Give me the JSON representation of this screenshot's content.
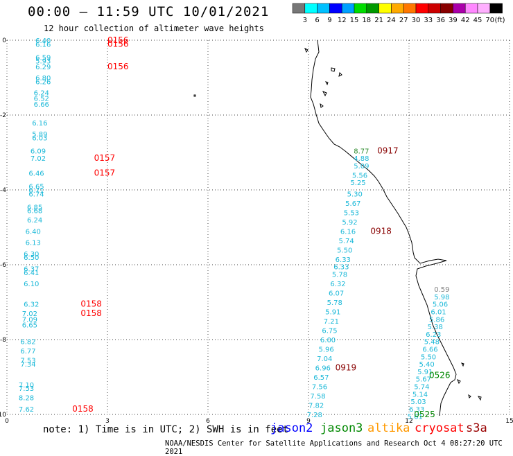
{
  "title": "00:00 – 11:59 UTC 10/01/2021",
  "subtitle": "12 hour collection of altimeter wave heights",
  "color_scale": {
    "colors": [
      "#777777",
      "#00ffff",
      "#00c0ff",
      "#0000ff",
      "#00a0ff",
      "#00dd00",
      "#009900",
      "#ffff00",
      "#ffaa00",
      "#ff7700",
      "#ff0000",
      "#cc0000",
      "#880000",
      "#aa00aa",
      "#ff88ff",
      "#ffb0ff",
      "#000000"
    ],
    "labels": [
      "3",
      "6",
      "9",
      "12",
      "15",
      "18",
      "21",
      "24",
      "27",
      "30",
      "33",
      "36",
      "39",
      "42",
      "45",
      "70"
    ],
    "unit": "(ft)"
  },
  "axes": {
    "x_ticks": [
      "0",
      "3",
      "6",
      "9",
      "12",
      "15"
    ],
    "y_ticks": [
      "0",
      "-2",
      "-4",
      "-6",
      "-8",
      "-10"
    ]
  },
  "note": "note: 1) Time is in UTC; 2) SWH is in feet",
  "satellites": [
    {
      "name": "jason2",
      "color": "#0000ff"
    },
    {
      "name": "jason3",
      "color": "#008800"
    },
    {
      "name": "altika",
      "color": "#ff9900"
    },
    {
      "name": "cryosat",
      "color": "#ff0000"
    },
    {
      "name": "s3a",
      "color": "#990000"
    }
  ],
  "footer": "NOAA/NESDIS Center for Satellite Applications and Research   Oct  4 08:27:20 UTC 2021",
  "track_left": [
    {
      "x": 0.85,
      "y": 0.0,
      "v": "6.40"
    },
    {
      "x": 0.85,
      "y": -0.1,
      "v": "6.16"
    },
    {
      "x": 0.85,
      "y": -0.45,
      "v": "6.59"
    },
    {
      "x": 0.85,
      "y": -0.55,
      "v": "5.93"
    },
    {
      "x": 0.85,
      "y": -0.7,
      "v": "6.29"
    },
    {
      "x": 0.85,
      "y": -1.0,
      "v": "6.80"
    },
    {
      "x": 0.85,
      "y": -1.1,
      "v": "6.26"
    },
    {
      "x": 0.8,
      "y": -1.4,
      "v": "6.24"
    },
    {
      "x": 0.8,
      "y": -1.55,
      "v": "6.52"
    },
    {
      "x": 0.8,
      "y": -1.7,
      "v": "6.66"
    },
    {
      "x": 0.75,
      "y": -2.2,
      "v": "6.16"
    },
    {
      "x": 0.75,
      "y": -2.5,
      "v": "5.89"
    },
    {
      "x": 0.75,
      "y": -2.6,
      "v": "6.03"
    },
    {
      "x": 0.7,
      "y": -2.95,
      "v": "6.09"
    },
    {
      "x": 0.7,
      "y": -3.15,
      "v": "7.02"
    },
    {
      "x": 0.65,
      "y": -3.55,
      "v": "6.46"
    },
    {
      "x": 0.65,
      "y": -3.9,
      "v": "6.65"
    },
    {
      "x": 0.65,
      "y": -4.0,
      "v": "6.71"
    },
    {
      "x": 0.65,
      "y": -4.1,
      "v": "6.74"
    },
    {
      "x": 0.6,
      "y": -4.45,
      "v": "6.85"
    },
    {
      "x": 0.6,
      "y": -4.55,
      "v": "6.68"
    },
    {
      "x": 0.6,
      "y": -4.8,
      "v": "6.24"
    },
    {
      "x": 0.55,
      "y": -5.1,
      "v": "6.40"
    },
    {
      "x": 0.55,
      "y": -5.4,
      "v": "6.13"
    },
    {
      "x": 0.5,
      "y": -5.7,
      "v": "6.30"
    },
    {
      "x": 0.5,
      "y": -5.8,
      "v": "6.50"
    },
    {
      "x": 0.5,
      "y": -6.1,
      "v": "6.37"
    },
    {
      "x": 0.5,
      "y": -6.2,
      "v": "6.41"
    },
    {
      "x": 0.5,
      "y": -6.5,
      "v": "6.10"
    },
    {
      "x": 0.5,
      "y": -7.05,
      "v": "6.32"
    },
    {
      "x": 0.45,
      "y": -7.3,
      "v": "7.02"
    },
    {
      "x": 0.45,
      "y": -7.45,
      "v": "7.09"
    },
    {
      "x": 0.45,
      "y": -7.6,
      "v": "6.65"
    },
    {
      "x": 0.4,
      "y": -8.05,
      "v": "6.82"
    },
    {
      "x": 0.4,
      "y": -8.3,
      "v": "6.77"
    },
    {
      "x": 0.4,
      "y": -8.55,
      "v": "7.53"
    },
    {
      "x": 0.4,
      "y": -8.65,
      "v": "7.34"
    },
    {
      "x": 0.35,
      "y": -9.2,
      "v": "7.10"
    },
    {
      "x": 0.35,
      "y": -9.3,
      "v": "7.53"
    },
    {
      "x": 0.35,
      "y": -9.55,
      "v": "8.28"
    },
    {
      "x": 0.35,
      "y": -9.85,
      "v": "7.62"
    }
  ],
  "track_right": [
    {
      "x": 10.35,
      "y": -2.95,
      "v": "8.77",
      "c": "#2e8b2e"
    },
    {
      "x": 10.35,
      "y": -3.15,
      "v": "4.88"
    },
    {
      "x": 10.35,
      "y": -3.35,
      "v": "5.09"
    },
    {
      "x": 10.3,
      "y": -3.6,
      "v": "5.56"
    },
    {
      "x": 10.25,
      "y": -3.8,
      "v": "5.25"
    },
    {
      "x": 10.15,
      "y": -4.1,
      "v": "5.30"
    },
    {
      "x": 10.1,
      "y": -4.35,
      "v": "5.67"
    },
    {
      "x": 10.05,
      "y": -4.6,
      "v": "5.53"
    },
    {
      "x": 10.0,
      "y": -4.85,
      "v": "5.92"
    },
    {
      "x": 9.95,
      "y": -5.1,
      "v": "6.16"
    },
    {
      "x": 9.9,
      "y": -5.35,
      "v": "5.74"
    },
    {
      "x": 9.85,
      "y": -5.6,
      "v": "5.50"
    },
    {
      "x": 9.8,
      "y": -5.85,
      "v": "6.33"
    },
    {
      "x": 9.75,
      "y": -6.05,
      "v": "6.33"
    },
    {
      "x": 9.7,
      "y": -6.25,
      "v": "5.78"
    },
    {
      "x": 9.65,
      "y": -6.5,
      "v": "6.32"
    },
    {
      "x": 9.6,
      "y": -6.75,
      "v": "6.07"
    },
    {
      "x": 9.55,
      "y": -7.0,
      "v": "5.78"
    },
    {
      "x": 9.5,
      "y": -7.25,
      "v": "5.91"
    },
    {
      "x": 9.45,
      "y": -7.5,
      "v": "7.21"
    },
    {
      "x": 9.4,
      "y": -7.75,
      "v": "6.75"
    },
    {
      "x": 9.35,
      "y": -8.0,
      "v": "6.00"
    },
    {
      "x": 9.3,
      "y": -8.25,
      "v": "5.96"
    },
    {
      "x": 9.25,
      "y": -8.5,
      "v": "7.04"
    },
    {
      "x": 9.2,
      "y": -8.75,
      "v": "6.96"
    },
    {
      "x": 9.15,
      "y": -9.0,
      "v": "6.57"
    },
    {
      "x": 9.1,
      "y": -9.25,
      "v": "7.56"
    },
    {
      "x": 9.05,
      "y": -9.5,
      "v": "7.58"
    },
    {
      "x": 9.0,
      "y": -9.75,
      "v": "7.82"
    },
    {
      "x": 8.95,
      "y": -10.0,
      "v": "7.28"
    }
  ],
  "track_east": [
    {
      "x": 12.75,
      "y": -6.65,
      "v": "0.59",
      "c": "#808080"
    },
    {
      "x": 12.75,
      "y": -6.85,
      "v": "5.98"
    },
    {
      "x": 12.7,
      "y": -7.05,
      "v": "5.06"
    },
    {
      "x": 12.65,
      "y": -7.25,
      "v": "6.01"
    },
    {
      "x": 12.6,
      "y": -7.45,
      "v": "5.86"
    },
    {
      "x": 12.55,
      "y": -7.65,
      "v": "5.38"
    },
    {
      "x": 12.5,
      "y": -7.85,
      "v": "6.23"
    },
    {
      "x": 12.45,
      "y": -8.05,
      "v": "5.48"
    },
    {
      "x": 12.4,
      "y": -8.25,
      "v": "6.66"
    },
    {
      "x": 12.35,
      "y": -8.45,
      "v": "5.50"
    },
    {
      "x": 12.3,
      "y": -8.65,
      "v": "5.40"
    },
    {
      "x": 12.25,
      "y": -8.85,
      "v": "5.91"
    },
    {
      "x": 12.2,
      "y": -9.05,
      "v": "5.67"
    },
    {
      "x": 12.15,
      "y": -9.25,
      "v": "5.74"
    },
    {
      "x": 12.1,
      "y": -9.45,
      "v": "5.14"
    },
    {
      "x": 12.05,
      "y": -9.65,
      "v": "5.03"
    },
    {
      "x": 12.0,
      "y": -9.85,
      "v": "6.33"
    },
    {
      "x": 11.95,
      "y": -10.05,
      "v": "5.61"
    }
  ],
  "time_labels": [
    {
      "x": 3.0,
      "y": 0.0,
      "v": "0156",
      "c": "#ff0000"
    },
    {
      "x": 3.0,
      "y": -0.1,
      "v": "0156",
      "c": "#ff0000"
    },
    {
      "x": 3.0,
      "y": -0.7,
      "v": "0156",
      "c": "#ff0000"
    },
    {
      "x": 2.6,
      "y": -3.15,
      "v": "0157",
      "c": "#ff0000"
    },
    {
      "x": 2.6,
      "y": -3.55,
      "v": "0157",
      "c": "#ff0000"
    },
    {
      "x": 2.2,
      "y": -7.05,
      "v": "0158",
      "c": "#ff0000"
    },
    {
      "x": 2.2,
      "y": -7.3,
      "v": "0158",
      "c": "#ff0000"
    },
    {
      "x": 1.95,
      "y": -9.85,
      "v": "0158",
      "c": "#ff0000"
    },
    {
      "x": 11.05,
      "y": -2.95,
      "v": "0917",
      "c": "#880000"
    },
    {
      "x": 10.85,
      "y": -5.1,
      "v": "0918",
      "c": "#880000"
    },
    {
      "x": 9.8,
      "y": -8.75,
      "v": "0919",
      "c": "#880000"
    },
    {
      "x": 12.6,
      "y": -8.95,
      "v": "0526",
      "c": "#008800"
    },
    {
      "x": 12.15,
      "y": -10.0,
      "v": "0525",
      "c": "#008800"
    }
  ]
}
